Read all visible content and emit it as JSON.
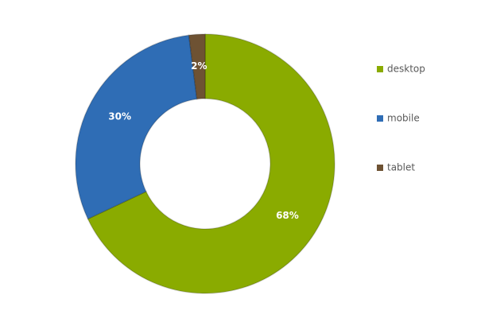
{
  "chart_data": {
    "type": "donut",
    "categories": [
      "desktop",
      "mobile",
      "tablet"
    ],
    "values": [
      68,
      30,
      2
    ],
    "value_labels": [
      "68%",
      "30%",
      "2%"
    ],
    "colors": [
      "#8aab00",
      "#2f6db5",
      "#6e5233"
    ],
    "legend": "right"
  }
}
